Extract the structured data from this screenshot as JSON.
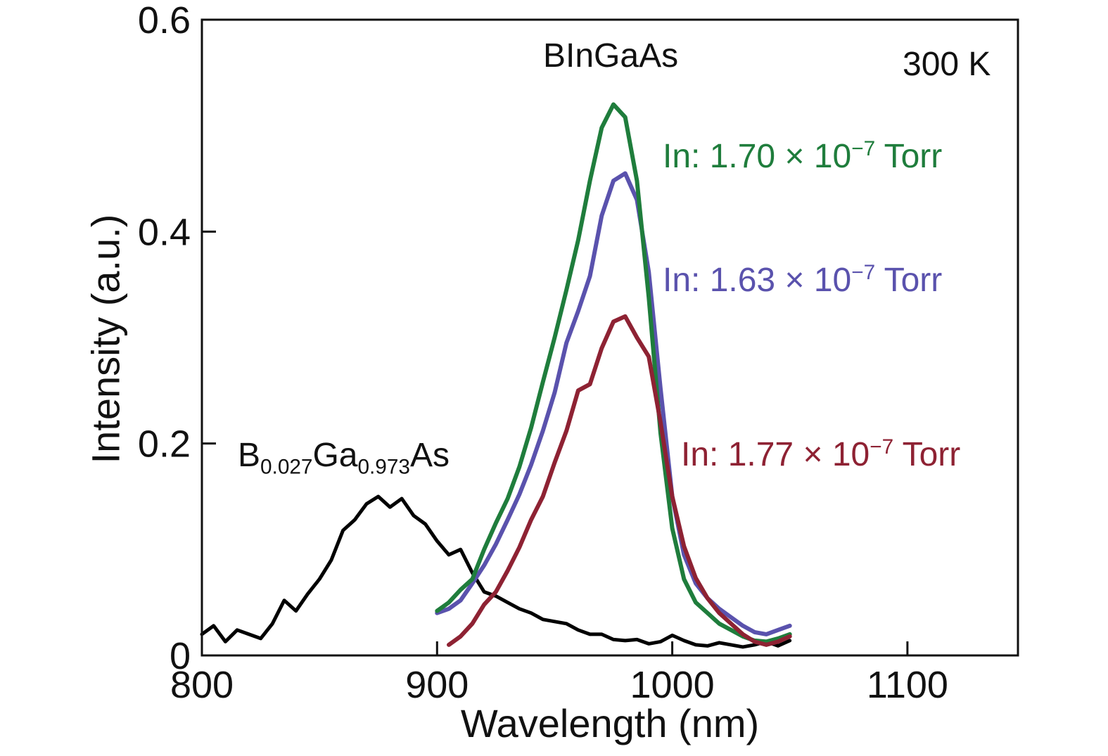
{
  "chart_data": {
    "type": "line",
    "title": "BInGaAs",
    "temperature_label": "300 K",
    "xlabel": "Wavelength (nm)",
    "ylabel": "Intensity (a.u.)",
    "xlim": [
      800,
      1147
    ],
    "ylim": [
      0,
      0.6
    ],
    "x_ticks": [
      800,
      900,
      1000,
      1100
    ],
    "x_tick_labels": [
      "800",
      "900",
      "1000",
      "1100"
    ],
    "y_ticks": [
      0,
      0.2,
      0.4,
      0.6
    ],
    "y_tick_labels": [
      "0",
      "0.2",
      "0.4",
      "0.6"
    ],
    "grid": false,
    "legend_position": "inline-annotations",
    "frame_color": "#111111",
    "annotations": {
      "bgaas": {
        "p1": "B",
        "s1": "0.027",
        "p2": "Ga",
        "s2": "0.973",
        "p3": "As"
      },
      "in170": {
        "prefix": "In: 1.70 × 10",
        "exp": "−7",
        "suffix": " Torr"
      },
      "in163": {
        "prefix": "In: 1.63 × 10",
        "exp": "−7",
        "suffix": " Torr"
      },
      "in177": {
        "prefix": "In: 1.77 × 10",
        "exp": "−7",
        "suffix": " Torr"
      }
    },
    "series": [
      {
        "id": "bgaas",
        "name": "B0.027Ga0.973As",
        "color": "#000000",
        "width": 5,
        "x": [
          800,
          805,
          810,
          815,
          820,
          825,
          830,
          835,
          840,
          845,
          850,
          855,
          860,
          865,
          870,
          875,
          880,
          885,
          890,
          895,
          900,
          905,
          910,
          915,
          920,
          925,
          930,
          935,
          940,
          945,
          950,
          955,
          960,
          965,
          970,
          975,
          980,
          985,
          990,
          995,
          1000,
          1005,
          1010,
          1015,
          1020,
          1025,
          1030,
          1035,
          1040,
          1045,
          1050
        ],
        "y": [
          0.02,
          0.028,
          0.013,
          0.024,
          0.02,
          0.016,
          0.03,
          0.052,
          0.042,
          0.058,
          0.072,
          0.09,
          0.118,
          0.128,
          0.143,
          0.15,
          0.14,
          0.148,
          0.132,
          0.124,
          0.108,
          0.095,
          0.1,
          0.078,
          0.06,
          0.056,
          0.05,
          0.044,
          0.04,
          0.034,
          0.032,
          0.03,
          0.024,
          0.02,
          0.02,
          0.015,
          0.014,
          0.015,
          0.011,
          0.013,
          0.019,
          0.014,
          0.01,
          0.009,
          0.012,
          0.01,
          0.008,
          0.01,
          0.013,
          0.009,
          0.014
        ]
      },
      {
        "id": "in163",
        "name": "In: 1.63 × 10^−7 Torr",
        "color": "#5a52ad",
        "width": 6,
        "x": [
          900,
          905,
          910,
          915,
          920,
          925,
          930,
          935,
          940,
          945,
          950,
          955,
          960,
          965,
          970,
          975,
          980,
          985,
          990,
          995,
          1000,
          1005,
          1010,
          1015,
          1020,
          1025,
          1030,
          1035,
          1040,
          1045,
          1050
        ],
        "y": [
          0.04,
          0.044,
          0.052,
          0.068,
          0.085,
          0.105,
          0.128,
          0.152,
          0.18,
          0.212,
          0.248,
          0.295,
          0.325,
          0.358,
          0.415,
          0.448,
          0.455,
          0.43,
          0.362,
          0.252,
          0.15,
          0.095,
          0.068,
          0.054,
          0.044,
          0.036,
          0.028,
          0.022,
          0.02,
          0.024,
          0.028
        ]
      },
      {
        "id": "in170",
        "name": "In: 1.70 × 10^−7 Torr",
        "color": "#1f7d3c",
        "width": 6,
        "x": [
          900,
          905,
          910,
          915,
          920,
          925,
          930,
          935,
          940,
          945,
          950,
          955,
          960,
          965,
          970,
          975,
          980,
          985,
          990,
          995,
          1000,
          1005,
          1010,
          1015,
          1020,
          1025,
          1030,
          1035,
          1040,
          1045,
          1050
        ],
        "y": [
          0.042,
          0.05,
          0.062,
          0.072,
          0.1,
          0.125,
          0.148,
          0.178,
          0.215,
          0.258,
          0.3,
          0.345,
          0.392,
          0.448,
          0.498,
          0.52,
          0.508,
          0.448,
          0.338,
          0.21,
          0.12,
          0.072,
          0.05,
          0.04,
          0.03,
          0.024,
          0.018,
          0.014,
          0.013,
          0.016,
          0.02
        ]
      },
      {
        "id": "in177",
        "name": "In: 1.77 × 10^−7 Torr",
        "color": "#8e2233",
        "width": 6,
        "x": [
          905,
          910,
          915,
          920,
          925,
          930,
          935,
          940,
          945,
          950,
          955,
          960,
          965,
          970,
          975,
          980,
          985,
          990,
          995,
          1000,
          1005,
          1010,
          1015,
          1020,
          1025,
          1030,
          1035,
          1040,
          1045,
          1050
        ],
        "y": [
          0.01,
          0.018,
          0.03,
          0.048,
          0.06,
          0.08,
          0.102,
          0.128,
          0.15,
          0.182,
          0.212,
          0.25,
          0.256,
          0.29,
          0.315,
          0.32,
          0.3,
          0.282,
          0.22,
          0.15,
          0.103,
          0.073,
          0.054,
          0.04,
          0.03,
          0.02,
          0.013,
          0.01,
          0.013,
          0.018
        ]
      }
    ]
  }
}
